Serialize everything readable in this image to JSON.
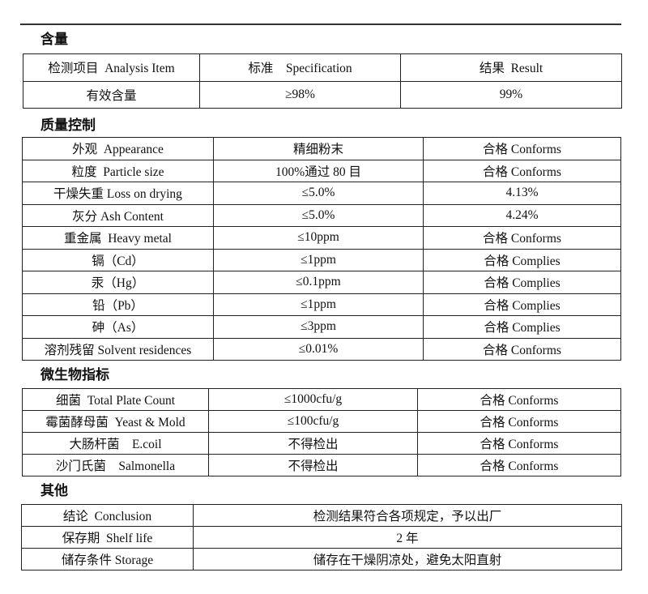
{
  "sections": [
    {
      "title": "含量",
      "rows": [
        [
          "检测项目  Analysis Item",
          "标准    Specification",
          "结果  Result"
        ],
        [
          "有效含量",
          "≥98%",
          "99%"
        ]
      ]
    },
    {
      "title": "质量控制",
      "rows": [
        [
          "外观  Appearance",
          "精细粉末",
          "合格 Conforms"
        ],
        [
          "粒度  Particle size",
          "100%通过 80 目",
          "合格 Conforms"
        ],
        [
          "干燥失重 Loss on drying",
          "≤5.0%",
          "4.13%"
        ],
        [
          "灰分 Ash Content",
          "≤5.0%",
          "4.24%"
        ],
        [
          "重金属  Heavy metal",
          "≤10ppm",
          "合格 Conforms"
        ],
        [
          "镉（Cd）",
          "≤1ppm",
          "合格 Complies"
        ],
        [
          "汞（Hg）",
          "≤0.1ppm",
          "合格 Complies"
        ],
        [
          "铅（Pb）",
          "≤1ppm",
          "合格 Complies"
        ],
        [
          "砷（As）",
          "≤3ppm",
          "合格 Complies"
        ],
        [
          "溶剂残留 Solvent residences",
          "≤0.01%",
          "合格 Conforms"
        ]
      ]
    },
    {
      "title": "微生物指标",
      "rows": [
        [
          "细菌  Total Plate Count",
          "≤1000cfu/g",
          "合格 Conforms"
        ],
        [
          "霉菌酵母菌  Yeast & Mold",
          "≤100cfu/g",
          "合格 Conforms"
        ],
        [
          "大肠杆菌    E.coil",
          "不得检出",
          "合格 Conforms"
        ],
        [
          "沙门氏菌    Salmonella",
          "不得检出",
          "合格 Conforms"
        ]
      ]
    },
    {
      "title": "其他",
      "rows": [
        [
          "结论  Conclusion",
          "检测结果符合各项规定，予以出厂"
        ],
        [
          "保存期  Shelf life",
          "2 年"
        ],
        [
          "储存条件 Storage",
          "储存在干燥阴凉处，避免太阳直射"
        ]
      ]
    }
  ]
}
